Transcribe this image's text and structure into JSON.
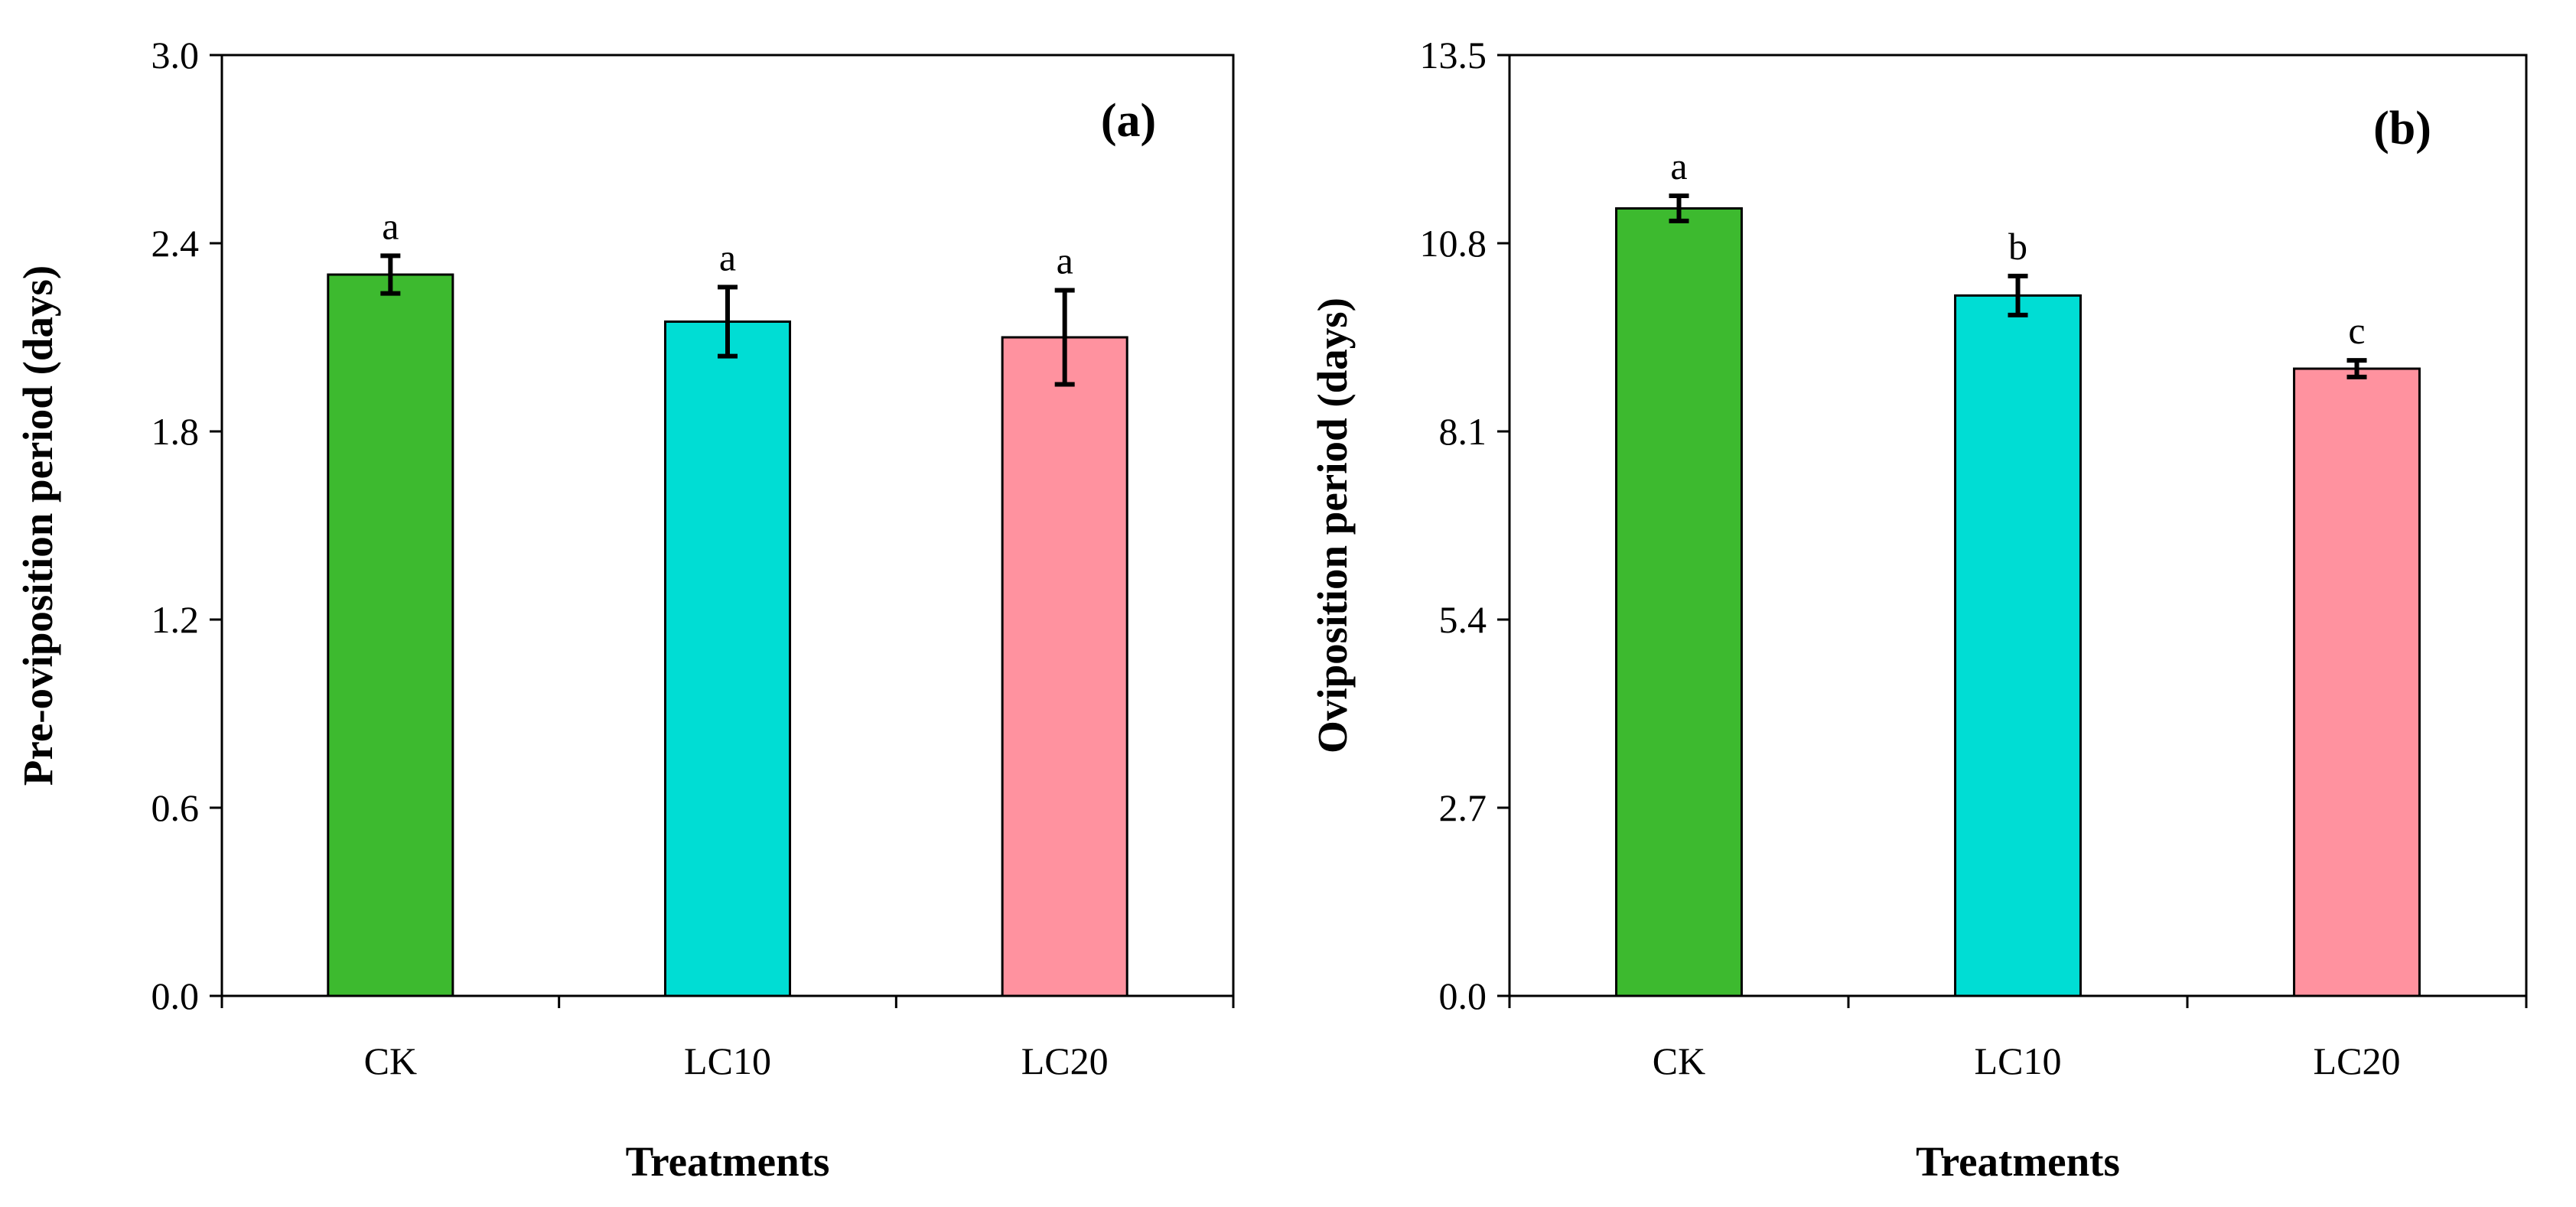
{
  "chart_data": [
    {
      "type": "bar",
      "panel_label": "(a)",
      "categories": [
        "CK",
        "LC10",
        "LC20"
      ],
      "values": [
        2.3,
        2.15,
        2.1
      ],
      "errors": [
        0.06,
        0.11,
        0.15
      ],
      "significance": [
        "a",
        "a",
        "a"
      ],
      "colors": [
        "#3dba2f",
        "#00ddd4",
        "#ff929f"
      ],
      "xlabel": "Treatments",
      "ylabel": "Pre-oviposition period (days)",
      "ylim": [
        0,
        3.0
      ],
      "yticks": [
        "0.0",
        "0.6",
        "1.2",
        "1.8",
        "2.4",
        "3.0"
      ],
      "grid": false
    },
    {
      "type": "bar",
      "panel_label": "(b)",
      "categories": [
        "CK",
        "LC10",
        "LC20"
      ],
      "values": [
        11.3,
        10.05,
        9.0
      ],
      "errors": [
        0.18,
        0.28,
        0.12
      ],
      "significance": [
        "a",
        "b",
        "c"
      ],
      "colors": [
        "#3dba2f",
        "#00ddd4",
        "#ff929f"
      ],
      "xlabel": "Treatments",
      "ylabel": "Oviposition period (days)",
      "ylim": [
        0,
        13.5
      ],
      "yticks": [
        "0.0",
        "2.7",
        "5.4",
        "8.1",
        "10.8",
        "13.5"
      ],
      "grid": false
    }
  ]
}
